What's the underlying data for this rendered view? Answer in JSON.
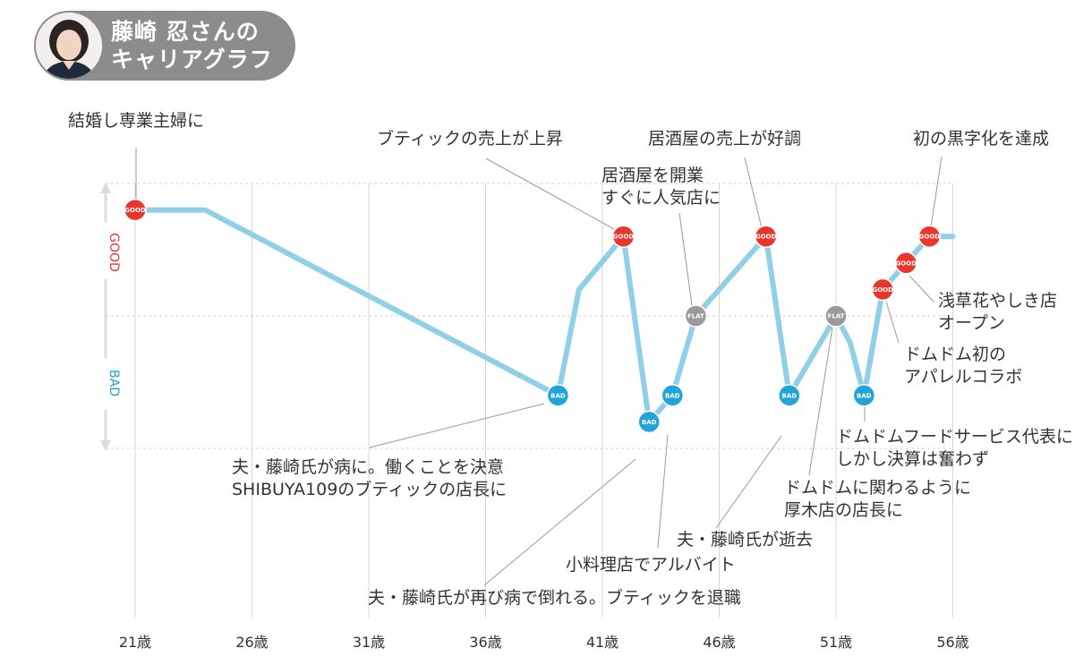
{
  "header": {
    "title_line1": "藤崎 忍さんの",
    "title_line2": "キャリアグラフ"
  },
  "chart_data": {
    "type": "line",
    "y_labels": {
      "good": "GOOD",
      "bad": "BAD"
    },
    "xlim": [
      21,
      56.5
    ],
    "ylim": [
      -1,
      1
    ],
    "x_ticks": [
      {
        "value": 21,
        "label": "21歳"
      },
      {
        "value": 26,
        "label": "26歳"
      },
      {
        "value": 31,
        "label": "31歳"
      },
      {
        "value": 36,
        "label": "36歳"
      },
      {
        "value": 41,
        "label": "41歳"
      },
      {
        "value": 46,
        "label": "46歳"
      },
      {
        "value": 51,
        "label": "51歳"
      },
      {
        "value": 56,
        "label": "56歳"
      }
    ],
    "grid": true,
    "line": [
      {
        "x": 21,
        "y": 0.8
      },
      {
        "x": 24,
        "y": 0.8
      },
      {
        "x": 39.1,
        "y": -0.6
      },
      {
        "x": 40,
        "y": 0.2
      },
      {
        "x": 41.9,
        "y": 0.6
      },
      {
        "x": 43,
        "y": -0.8
      },
      {
        "x": 44,
        "y": -0.6
      },
      {
        "x": 45,
        "y": 0
      },
      {
        "x": 48,
        "y": 0.6
      },
      {
        "x": 49,
        "y": -0.6
      },
      {
        "x": 51,
        "y": 0
      },
      {
        "x": 51.6,
        "y": -0.2
      },
      {
        "x": 52.2,
        "y": -0.6
      },
      {
        "x": 53,
        "y": 0.2
      },
      {
        "x": 54,
        "y": 0.4
      },
      {
        "x": 55,
        "y": 0.6
      },
      {
        "x": 56,
        "y": 0.6
      }
    ],
    "markers": [
      {
        "x": 21,
        "y": 0.8,
        "kind": "GOOD"
      },
      {
        "x": 39.1,
        "y": -0.6,
        "kind": "BAD"
      },
      {
        "x": 41.9,
        "y": 0.6,
        "kind": "GOOD"
      },
      {
        "x": 43,
        "y": -0.8,
        "kind": "BAD"
      },
      {
        "x": 44,
        "y": -0.6,
        "kind": "BAD"
      },
      {
        "x": 45,
        "y": 0,
        "kind": "FLAT"
      },
      {
        "x": 48,
        "y": 0.6,
        "kind": "GOOD"
      },
      {
        "x": 49,
        "y": -0.6,
        "kind": "BAD"
      },
      {
        "x": 51,
        "y": 0,
        "kind": "FLAT"
      },
      {
        "x": 52.2,
        "y": -0.6,
        "kind": "BAD"
      },
      {
        "x": 53,
        "y": 0.2,
        "kind": "GOOD"
      },
      {
        "x": 54,
        "y": 0.4,
        "kind": "GOOD"
      },
      {
        "x": 55,
        "y": 0.6,
        "kind": "GOOD"
      }
    ],
    "annotations": [
      {
        "lines": [
          "結婚し専業主婦に"
        ]
      },
      {
        "lines": [
          "ブティックの売上が上昇"
        ]
      },
      {
        "lines": [
          "居酒屋を開業",
          "すぐに人気店に"
        ]
      },
      {
        "lines": [
          "居酒屋の売上が好調"
        ]
      },
      {
        "lines": [
          "初の黒字化を達成"
        ]
      },
      {
        "lines": [
          "浅草花やしき店",
          "オープン"
        ]
      },
      {
        "lines": [
          "ドムドム初の",
          "アパレルコラボ"
        ]
      },
      {
        "lines": [
          "ドムドムフードサービス代表に",
          "しかし決算は奮わず"
        ]
      },
      {
        "lines": [
          "ドムドムに関わるように",
          "厚木店の店長に"
        ]
      },
      {
        "lines": [
          "夫・藤崎氏が逝去"
        ]
      },
      {
        "lines": [
          "小料理店でアルバイト"
        ]
      },
      {
        "lines": [
          "夫・藤崎氏が再び病で倒れる。ブティックを退職"
        ]
      },
      {
        "lines": [
          "夫・藤崎氏が病に。働くことを決意",
          "SHIBUYA109のブティックの店長に"
        ]
      }
    ]
  },
  "colors": {
    "line": "#8fd0e8",
    "good": "#e8362c",
    "bad": "#23a4d8",
    "flat": "#9a9a9a",
    "leader": "#9a9a9a",
    "grid": "#d6d6d6",
    "title_bg": "#8c8c8c"
  }
}
